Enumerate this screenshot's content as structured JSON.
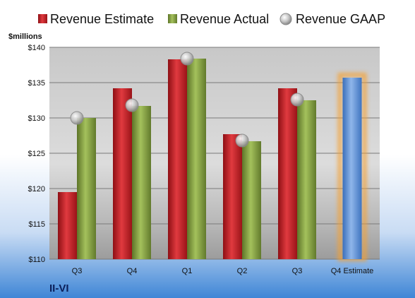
{
  "chart_data": {
    "type": "bar",
    "company": "II-VI",
    "ylabel": "$millions",
    "ylim": [
      110,
      140
    ],
    "yticks": [
      "$110",
      "$115",
      "$120",
      "$125",
      "$130",
      "$135",
      "$140"
    ],
    "ytick_values": [
      110,
      115,
      120,
      125,
      130,
      135,
      140
    ],
    "grid": true,
    "legend_position": "top",
    "categories": [
      "Q3",
      "Q4",
      "Q1",
      "Q2",
      "Q3",
      "Q4 Estimate"
    ],
    "series": [
      {
        "name": "Revenue Estimate",
        "kind": "bar",
        "color": "#c0191f",
        "values": [
          119.5,
          134.2,
          138.3,
          127.7,
          134.2,
          null
        ]
      },
      {
        "name": "Revenue Actual",
        "kind": "bar",
        "color": "#7f9a3e",
        "values": [
          130.0,
          131.7,
          138.4,
          126.7,
          132.5,
          null
        ]
      },
      {
        "name": "Revenue GAAP",
        "kind": "marker",
        "color": "#b8b8b8",
        "values": [
          130.0,
          131.8,
          138.4,
          126.8,
          132.6,
          null
        ]
      },
      {
        "name": "Q4 Estimate",
        "kind": "bar-highlight",
        "color": "#5b8fd6",
        "glow": "#f5a030",
        "values": [
          null,
          null,
          null,
          null,
          null,
          135.7
        ]
      }
    ]
  }
}
